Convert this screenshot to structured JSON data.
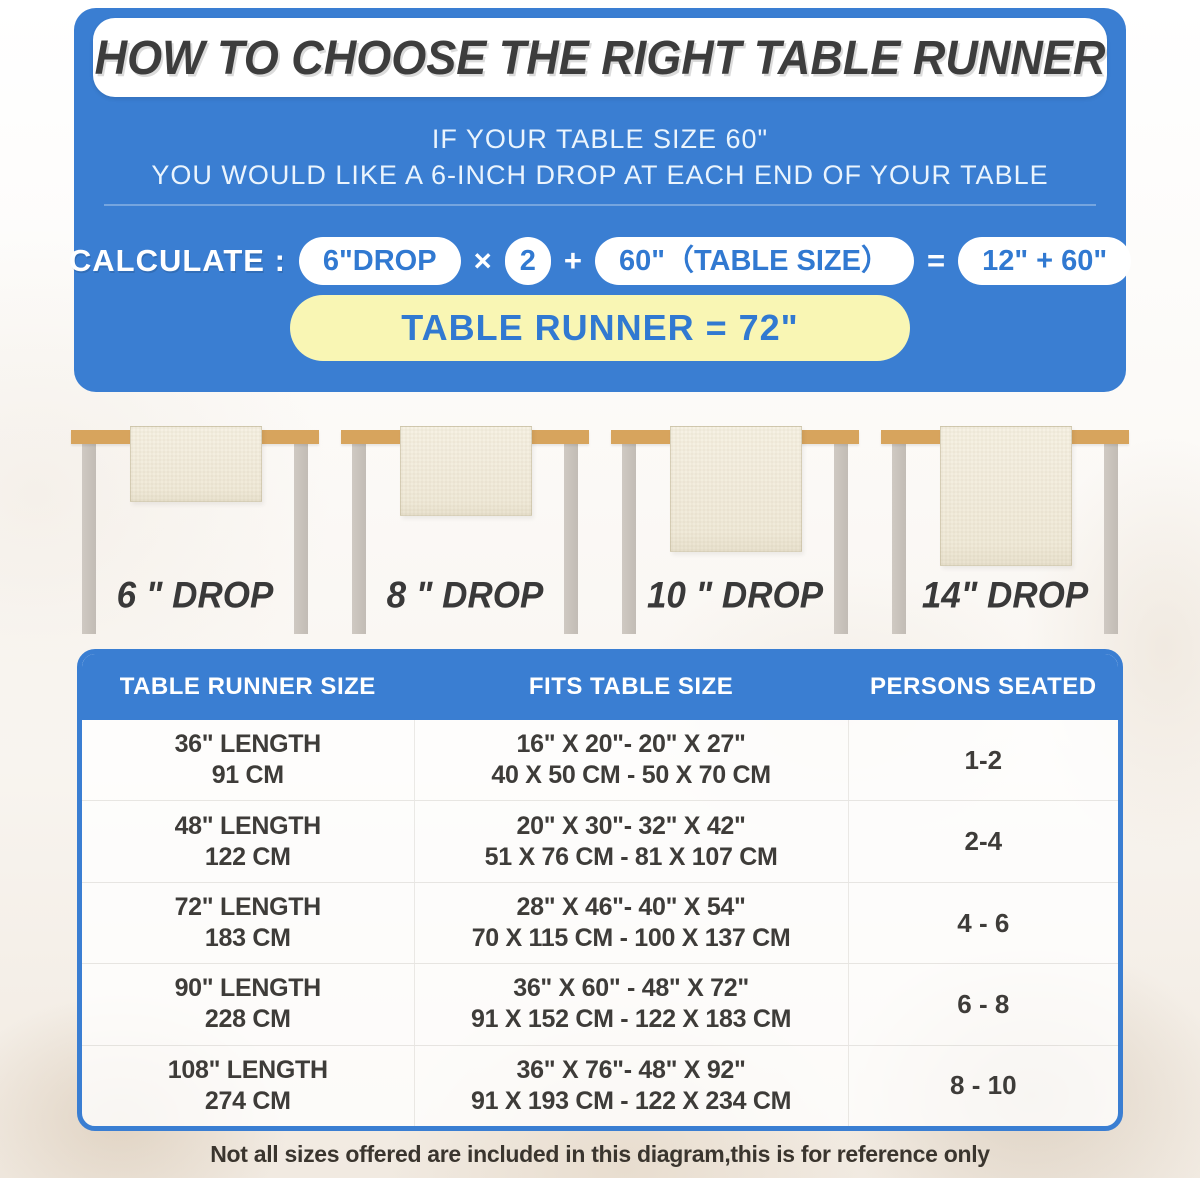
{
  "title": "HOW TO CHOOSE THE RIGHT TABLE RUNNER",
  "intro": {
    "line1": "IF YOUR TABLE SIZE 60\"",
    "line2": "YOU WOULD LIKE A 6-INCH DROP AT EACH END OF YOUR TABLE"
  },
  "calculation": {
    "label": "CALCULATE :",
    "drop_value": "6\"DROP",
    "multiply_sign": "×",
    "multiplier": "2",
    "plus_sign": "+",
    "table_size_value": "60\"（TABLE SIZE）",
    "equals_sign": "=",
    "sum_value": "12\" + 60\"",
    "result": "TABLE RUNNER = 72\""
  },
  "drop_examples": [
    {
      "label": "6 \" DROP"
    },
    {
      "label": "8 \" DROP"
    },
    {
      "label": "10 \" DROP"
    },
    {
      "label": "14\" DROP"
    }
  ],
  "size_table": {
    "headers": [
      "TABLE RUNNER SIZE",
      "FITS TABLE SIZE",
      "PERSONS SEATED"
    ],
    "rows": [
      {
        "runner_length_in": "36\" LENGTH",
        "runner_length_cm": "91 CM",
        "fits_in": "16\" X 20\"- 20\" X 27\"",
        "fits_cm": "40 X 50 CM - 50 X 70 CM",
        "persons": "1-2"
      },
      {
        "runner_length_in": "48\" LENGTH",
        "runner_length_cm": "122 CM",
        "fits_in": "20\" X 30\"- 32\" X 42\"",
        "fits_cm": "51 X 76 CM - 81 X 107 CM",
        "persons": "2-4"
      },
      {
        "runner_length_in": "72\" LENGTH",
        "runner_length_cm": "183 CM",
        "fits_in": "28\" X 46\"- 40\" X 54\"",
        "fits_cm": "70 X 115 CM - 100 X 137 CM",
        "persons": "4 - 6"
      },
      {
        "runner_length_in": "90\" LENGTH",
        "runner_length_cm": "228 CM",
        "fits_in": "36\" X 60\" - 48\" X 72\"",
        "fits_cm": "91 X 152 CM - 122 X 183 CM",
        "persons": "6 - 8"
      },
      {
        "runner_length_in": "108\" LENGTH",
        "runner_length_cm": "274 CM",
        "fits_in": "36\" X 76\"- 48\" X 92\"",
        "fits_cm": "91 X 193 CM - 122 X 234 CM",
        "persons": "8 - 10"
      }
    ]
  },
  "footnote": "Not all sizes offered are included in this diagram,this is for reference only",
  "colors": {
    "primary_blue": "#3a7ed2",
    "result_yellow": "#f9f6b4",
    "tabletop_tan": "#d7a45d",
    "leg_gray": "#c9c2bb",
    "runner_cream": "#f2edde",
    "text_dark": "#3e3e3e"
  }
}
